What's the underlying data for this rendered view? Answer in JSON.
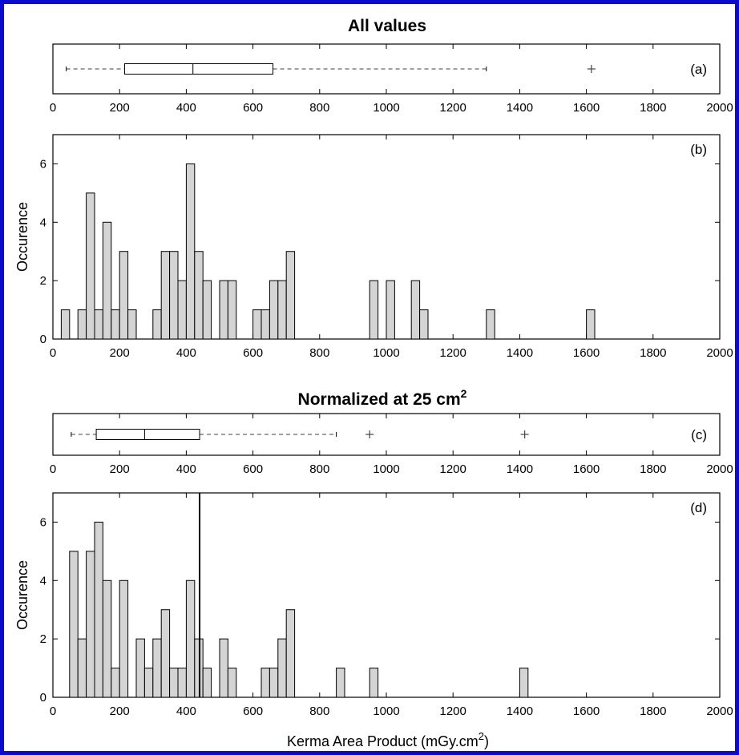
{
  "titles": {
    "top": "All values",
    "bottom_main": "Normalized at 25 cm",
    "bottom_sup": "2"
  },
  "xlabel": {
    "main": "Kerma Area Product (mGy.cm",
    "sup": "2",
    "end": ")"
  },
  "ylabel": "Occurence",
  "panel_labels": [
    "(a)",
    "(b)",
    "(c)",
    "(d)"
  ],
  "colors": {
    "frame": "#0a0ad0",
    "bar_fill": "#d4d4d4",
    "bar_edge": "#000000",
    "axis": "#000000",
    "dashed": "#666666",
    "mean_line": "#000000"
  },
  "chart_data": [
    {
      "type": "box",
      "panel": "(a)",
      "xlim": [
        0,
        2000
      ],
      "xticks": [
        0,
        200,
        400,
        600,
        800,
        1000,
        1200,
        1400,
        1600,
        1800,
        2000
      ],
      "whisker_low": 40,
      "q1": 215,
      "median": 420,
      "q3": 660,
      "whisker_high": 1300,
      "outliers": [
        1615
      ]
    },
    {
      "type": "bar",
      "panel": "(b)",
      "xlim": [
        0,
        2000
      ],
      "ylim": [
        0,
        7
      ],
      "xticks": [
        0,
        200,
        400,
        600,
        800,
        1000,
        1200,
        1400,
        1600,
        1800,
        2000
      ],
      "yticks": [
        0,
        2,
        4,
        6
      ],
      "bin_width": 25,
      "bins": [
        [
          25,
          1
        ],
        [
          75,
          1
        ],
        [
          100,
          5
        ],
        [
          125,
          1
        ],
        [
          150,
          4
        ],
        [
          175,
          1
        ],
        [
          200,
          3
        ],
        [
          225,
          1
        ],
        [
          300,
          1
        ],
        [
          325,
          3
        ],
        [
          350,
          3
        ],
        [
          375,
          2
        ],
        [
          400,
          6
        ],
        [
          425,
          3
        ],
        [
          450,
          2
        ],
        [
          500,
          2
        ],
        [
          525,
          2
        ],
        [
          600,
          1
        ],
        [
          625,
          1
        ],
        [
          650,
          2
        ],
        [
          675,
          2
        ],
        [
          700,
          3
        ],
        [
          950,
          2
        ],
        [
          1000,
          2
        ],
        [
          1075,
          2
        ],
        [
          1100,
          1
        ],
        [
          1300,
          1
        ],
        [
          1600,
          1
        ]
      ]
    },
    {
      "type": "box",
      "panel": "(c)",
      "xlim": [
        0,
        2000
      ],
      "xticks": [
        0,
        200,
        400,
        600,
        800,
        1000,
        1200,
        1400,
        1600,
        1800,
        2000
      ],
      "whisker_low": 55,
      "q1": 130,
      "median": 275,
      "q3": 440,
      "whisker_high": 850,
      "outliers": [
        950,
        1415
      ]
    },
    {
      "type": "bar",
      "panel": "(d)",
      "xlim": [
        0,
        2000
      ],
      "ylim": [
        0,
        7
      ],
      "xticks": [
        0,
        200,
        400,
        600,
        800,
        1000,
        1200,
        1400,
        1600,
        1800,
        2000
      ],
      "yticks": [
        0,
        2,
        4,
        6
      ],
      "bin_width": 25,
      "bins": [
        [
          50,
          5
        ],
        [
          75,
          2
        ],
        [
          100,
          5
        ],
        [
          125,
          6
        ],
        [
          150,
          4
        ],
        [
          175,
          1
        ],
        [
          200,
          4
        ],
        [
          250,
          2
        ],
        [
          275,
          1
        ],
        [
          300,
          2
        ],
        [
          325,
          3
        ],
        [
          350,
          1
        ],
        [
          375,
          1
        ],
        [
          400,
          4
        ],
        [
          425,
          2
        ],
        [
          450,
          1
        ],
        [
          500,
          2
        ],
        [
          525,
          1
        ],
        [
          625,
          1
        ],
        [
          650,
          1
        ],
        [
          675,
          2
        ],
        [
          700,
          3
        ],
        [
          850,
          1
        ],
        [
          950,
          1
        ],
        [
          1400,
          1
        ]
      ],
      "reference_line_x": 440
    }
  ]
}
